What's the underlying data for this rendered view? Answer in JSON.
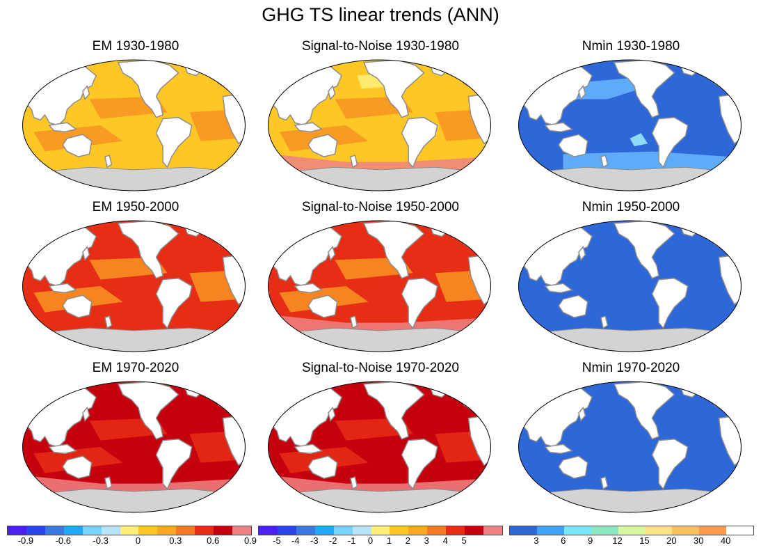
{
  "title": "GHG TS linear trends (ANN)",
  "panels": [
    {
      "title": "EM 1930-1980",
      "scheme": "em",
      "level": 1
    },
    {
      "title": "Signal-to-Noise 1930-1980",
      "scheme": "sn",
      "level": 1
    },
    {
      "title": "Nmin 1930-1980",
      "scheme": "nmin",
      "level": 1
    },
    {
      "title": "EM 1950-2000",
      "scheme": "em",
      "level": 2
    },
    {
      "title": "Signal-to-Noise 1950-2000",
      "scheme": "sn",
      "level": 2
    },
    {
      "title": "Nmin 1950-2000",
      "scheme": "nmin",
      "level": 2
    },
    {
      "title": "EM 1970-2020",
      "scheme": "em",
      "level": 3
    },
    {
      "title": "Signal-to-Noise 1970-2020",
      "scheme": "sn",
      "level": 3
    },
    {
      "title": "Nmin 1970-2020",
      "scheme": "nmin",
      "level": 3
    }
  ],
  "colors": {
    "land": "#ffffff",
    "antarctica": "#d3d3d3",
    "coast": "#8c8c8c",
    "em_low": "#fdc826",
    "em_mid": "#f89323",
    "em_high": "#e52e15",
    "em_top": "#c5000f",
    "em_pink": "#ef8282",
    "nmin_base": "#2e68d8",
    "nmin_light": "#66b8ff",
    "nmin_cyan": "#9ff0ff"
  },
  "colorbars": [
    {
      "name": "em",
      "colors": [
        "#4a1ff0",
        "#2b46e8",
        "#3b78e6",
        "#1fa8f6",
        "#77d5ff",
        "#b8e4f8",
        "#fff07a",
        "#fdc826",
        "#f8a823",
        "#f87a20",
        "#e52e15",
        "#c5000f",
        "#ef8282"
      ],
      "labels": [
        "-0.9",
        "-0.6",
        "-0.3",
        "0",
        "0.3",
        "0.6",
        "0.9"
      ]
    },
    {
      "name": "sn",
      "colors": [
        "#4a1ff0",
        "#2b46e8",
        "#3b78e6",
        "#1fa8f6",
        "#77d5ff",
        "#b8e4f8",
        "#fff07a",
        "#fdc826",
        "#f8a823",
        "#f87a20",
        "#e52e15",
        "#c5000f",
        "#ef8282"
      ],
      "labels": [
        "-5",
        "-4",
        "-3",
        "-2",
        "-1",
        "0",
        "1",
        "2",
        "3",
        "4",
        "5"
      ]
    },
    {
      "name": "nmin",
      "colors": [
        "#2e68d8",
        "#3fa4f8",
        "#78e8f8",
        "#8ee8c0",
        "#d8f8a0",
        "#fde28a",
        "#fbc060",
        "#f89a50",
        "#ffffff"
      ],
      "labels": [
        "3",
        "6",
        "9",
        "12",
        "15",
        "20",
        "30",
        "40"
      ]
    }
  ]
}
